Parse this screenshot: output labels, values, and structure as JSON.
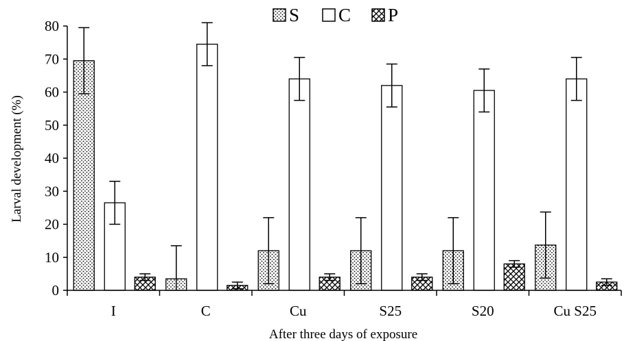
{
  "chart_data": {
    "type": "bar",
    "xlabel": "After three days of exposure",
    "ylabel": "Larval development (%)",
    "ylim": [
      0,
      80
    ],
    "yticks": [
      0,
      10,
      20,
      30,
      40,
      50,
      60,
      70,
      80
    ],
    "categories": [
      "I",
      "C",
      "Cu",
      "S25",
      "S20",
      "Cu S25"
    ],
    "legend_position": "top-center",
    "grid": false,
    "series": [
      {
        "name": "S",
        "pattern": "dots",
        "values": [
          69.5,
          3.5,
          12,
          12,
          12,
          13.7
        ],
        "errors": [
          10,
          10,
          10,
          10,
          10,
          10
        ]
      },
      {
        "name": "C",
        "pattern": "empty",
        "values": [
          26.5,
          74.5,
          64,
          62,
          60.5,
          64
        ],
        "errors": [
          6.5,
          6.5,
          6.5,
          6.5,
          6.5,
          6.5
        ]
      },
      {
        "name": "P",
        "pattern": "crosshatch",
        "values": [
          4,
          1.5,
          4,
          4,
          8,
          2.5
        ],
        "errors": [
          1,
          1,
          1,
          1,
          1,
          1
        ]
      }
    ]
  }
}
